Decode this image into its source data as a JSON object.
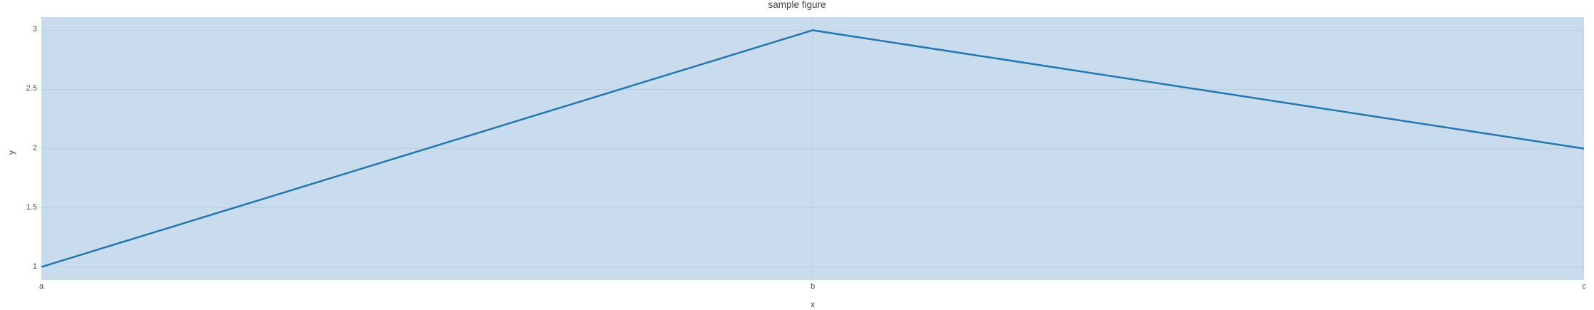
{
  "chart_data": {
    "type": "line",
    "title": "sample figure",
    "xlabel": "x",
    "ylabel": "y",
    "categories": [
      "a",
      "b",
      "c"
    ],
    "series": [
      {
        "name": "y",
        "values": [
          1,
          3,
          2
        ]
      }
    ],
    "values": [
      1,
      3,
      2
    ],
    "yticks": [
      1,
      1.5,
      2,
      2.5,
      3
    ],
    "ytick_labels": [
      "1",
      "1.5",
      "2",
      "2.5",
      "3"
    ],
    "ylim": [
      0.889,
      3.111
    ],
    "grid": true,
    "legend_position": "none",
    "colors": {
      "line": "#1f77b4",
      "plot_background": "#c9dcee",
      "grid": "#bccfe0",
      "title_text": "#444444",
      "tick_text": "#494949",
      "page_background": "#ffffff"
    }
  }
}
